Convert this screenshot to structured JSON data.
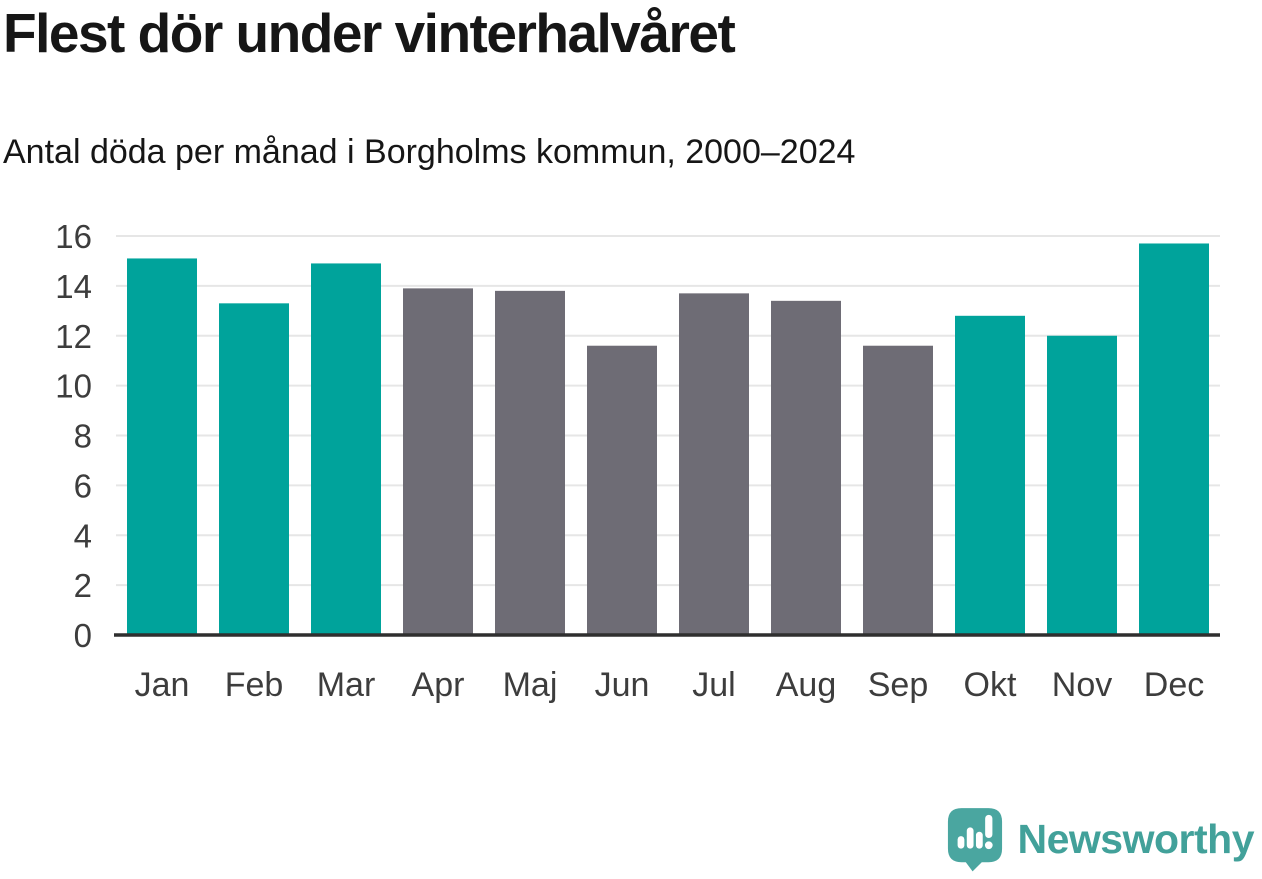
{
  "header": {
    "title": "Flest dör under vinterhalvåret",
    "subtitle": "Antal döda per månad i Borgholms kommun, 2000–2024"
  },
  "chart_data": {
    "type": "bar",
    "title": "Flest dör under vinterhalvåret",
    "subtitle": "Antal döda per månad i Borgholms kommun, 2000–2024",
    "categories": [
      "Jan",
      "Feb",
      "Mar",
      "Apr",
      "Maj",
      "Jun",
      "Jul",
      "Aug",
      "Sep",
      "Okt",
      "Nov",
      "Dec"
    ],
    "values": [
      15.1,
      13.3,
      14.9,
      13.9,
      13.8,
      11.6,
      13.7,
      13.4,
      11.6,
      12.8,
      12.0,
      15.7
    ],
    "bar_colors": [
      "#00a39b",
      "#00a39b",
      "#00a39b",
      "#6e6c75",
      "#6e6c75",
      "#6e6c75",
      "#6e6c75",
      "#6e6c75",
      "#6e6c75",
      "#00a39b",
      "#00a39b",
      "#00a39b"
    ],
    "xlabel": "",
    "ylabel": "",
    "ylim": [
      0,
      16
    ],
    "yticks": [
      0,
      2,
      4,
      6,
      8,
      10,
      12,
      14,
      16
    ],
    "grid": true,
    "legend": false,
    "colors": {
      "winter_bar": "#00a39b",
      "summer_bar": "#6e6c75",
      "gridline": "#e6e6e6",
      "axis_line": "#2f2f2f",
      "tick_label": "#3d3d3d"
    }
  },
  "footer": {
    "brand": "Newsworthy",
    "brand_color": "#42a19a",
    "logo_icon_color": "#4aa6a0",
    "logo_icon": "bar-chart-speech-bubble"
  }
}
